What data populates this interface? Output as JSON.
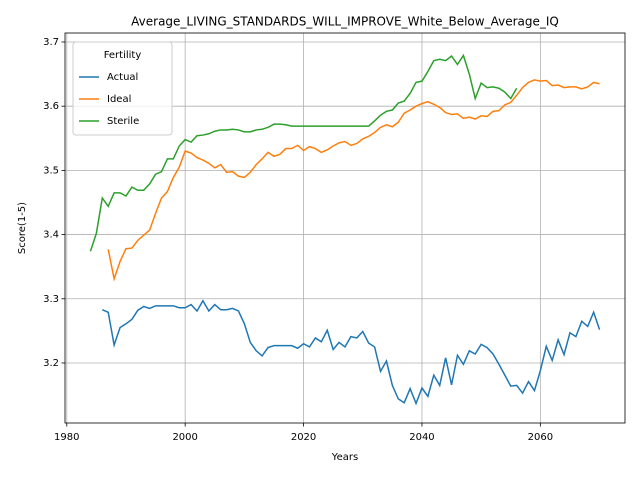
{
  "chart_data": {
    "type": "line",
    "title": "Average_LIVING_STANDARDS_WILL_IMPROVE_White_Below_Average_IQ",
    "x_label": "Years",
    "y_label": "Score(1-5)",
    "legend_title": "Fertility",
    "legend": "upper left",
    "grid": true,
    "x": [
      1984,
      1985,
      1986,
      1987,
      1988,
      1989,
      1990,
      1991,
      1992,
      1993,
      1994,
      1995,
      1996,
      1997,
      1998,
      1999,
      2000,
      2001,
      2002,
      2003,
      2004,
      2005,
      2006,
      2007,
      2008,
      2009,
      2010,
      2011,
      2012,
      2013,
      2014,
      2015,
      2016,
      2017,
      2018,
      2019,
      2020,
      2021,
      2022,
      2023,
      2024,
      2025,
      2026,
      2027,
      2028,
      2029,
      2030,
      2031,
      2032,
      2033,
      2034,
      2035,
      2036,
      2037,
      2038,
      2039,
      2040,
      2041,
      2042,
      2043,
      2044,
      2045,
      2046,
      2047,
      2048,
      2049,
      2050,
      2051,
      2052,
      2053,
      2054,
      2055,
      2056,
      2057,
      2058,
      2059,
      2060,
      2061,
      2062,
      2063,
      2064,
      2065,
      2066,
      2067,
      2068,
      2069,
      2070
    ],
    "xlim": [
      1979.7,
      2074.3
    ],
    "xticks": [
      1980,
      2000,
      2020,
      2040,
      2060
    ],
    "ylim": [
      3.1065,
      3.714
    ],
    "yticks": [
      3.2,
      3.3,
      3.4,
      3.5,
      3.6,
      3.7
    ],
    "series": [
      {
        "name": "Actual",
        "color": "#1f77b4",
        "values": [
          null,
          null,
          3.283,
          3.279,
          3.228,
          3.255,
          3.261,
          3.268,
          3.282,
          3.288,
          3.285,
          3.289,
          3.289,
          3.289,
          3.289,
          3.286,
          3.286,
          3.291,
          3.281,
          3.297,
          3.281,
          3.291,
          3.283,
          3.283,
          3.285,
          3.281,
          3.261,
          3.232,
          3.219,
          3.211,
          3.224,
          3.227,
          3.227,
          3.227,
          3.227,
          3.223,
          3.23,
          3.225,
          3.239,
          3.233,
          3.251,
          3.221,
          3.232,
          3.225,
          3.241,
          3.239,
          3.249,
          3.231,
          3.225,
          3.187,
          3.203,
          3.165,
          3.144,
          3.138,
          3.16,
          3.137,
          3.161,
          3.148,
          3.181,
          3.165,
          3.208,
          3.166,
          3.212,
          3.198,
          3.219,
          3.214,
          3.229,
          3.224,
          3.214,
          3.198,
          3.181,
          3.164,
          3.165,
          3.153,
          3.171,
          3.157,
          3.188,
          3.226,
          3.204,
          3.236,
          3.213,
          3.247,
          3.241,
          3.265,
          3.257,
          3.279,
          3.252
        ]
      },
      {
        "name": "Ideal",
        "color": "#ff7f0e",
        "values": [
          null,
          null,
          null,
          3.377,
          3.331,
          3.358,
          3.378,
          3.379,
          3.391,
          3.399,
          3.407,
          3.433,
          3.457,
          3.467,
          3.489,
          3.505,
          3.53,
          3.527,
          3.52,
          3.516,
          3.511,
          3.504,
          3.509,
          3.497,
          3.498,
          3.491,
          3.489,
          3.497,
          3.509,
          3.518,
          3.528,
          3.522,
          3.525,
          3.534,
          3.534,
          3.539,
          3.531,
          3.537,
          3.534,
          3.528,
          3.532,
          3.538,
          3.543,
          3.545,
          3.539,
          3.542,
          3.549,
          3.553,
          3.559,
          3.567,
          3.571,
          3.568,
          3.575,
          3.589,
          3.594,
          3.6,
          3.604,
          3.607,
          3.603,
          3.598,
          3.59,
          3.587,
          3.588,
          3.581,
          3.583,
          3.58,
          3.585,
          3.584,
          3.592,
          3.593,
          3.602,
          3.606,
          3.617,
          3.629,
          3.637,
          3.641,
          3.639,
          3.64,
          3.632,
          3.633,
          3.629,
          3.63,
          3.63,
          3.627,
          3.63,
          3.637,
          3.635
        ]
      },
      {
        "name": "Sterile",
        "color": "#2ca02c",
        "values": [
          3.374,
          3.402,
          3.457,
          3.444,
          3.465,
          3.465,
          3.46,
          3.474,
          3.469,
          3.469,
          3.479,
          3.494,
          3.498,
          3.518,
          3.518,
          3.538,
          3.548,
          3.544,
          3.554,
          3.555,
          3.557,
          3.561,
          3.563,
          3.563,
          3.564,
          3.563,
          3.56,
          3.56,
          3.563,
          3.564,
          3.567,
          3.572,
          3.572,
          3.571,
          3.569,
          3.569,
          3.569,
          3.569,
          3.569,
          3.569,
          3.569,
          3.569,
          3.569,
          3.569,
          3.569,
          3.569,
          3.569,
          3.569,
          3.577,
          3.586,
          3.592,
          3.594,
          3.605,
          3.608,
          3.62,
          3.637,
          3.639,
          3.654,
          3.671,
          3.673,
          3.671,
          3.678,
          3.665,
          3.679,
          3.65,
          3.612,
          3.636,
          3.629,
          3.63,
          3.628,
          3.622,
          3.612,
          3.628,
          null,
          null,
          null,
          null,
          null,
          null,
          null,
          null,
          null,
          null,
          null,
          null,
          null,
          null
        ]
      }
    ]
  }
}
